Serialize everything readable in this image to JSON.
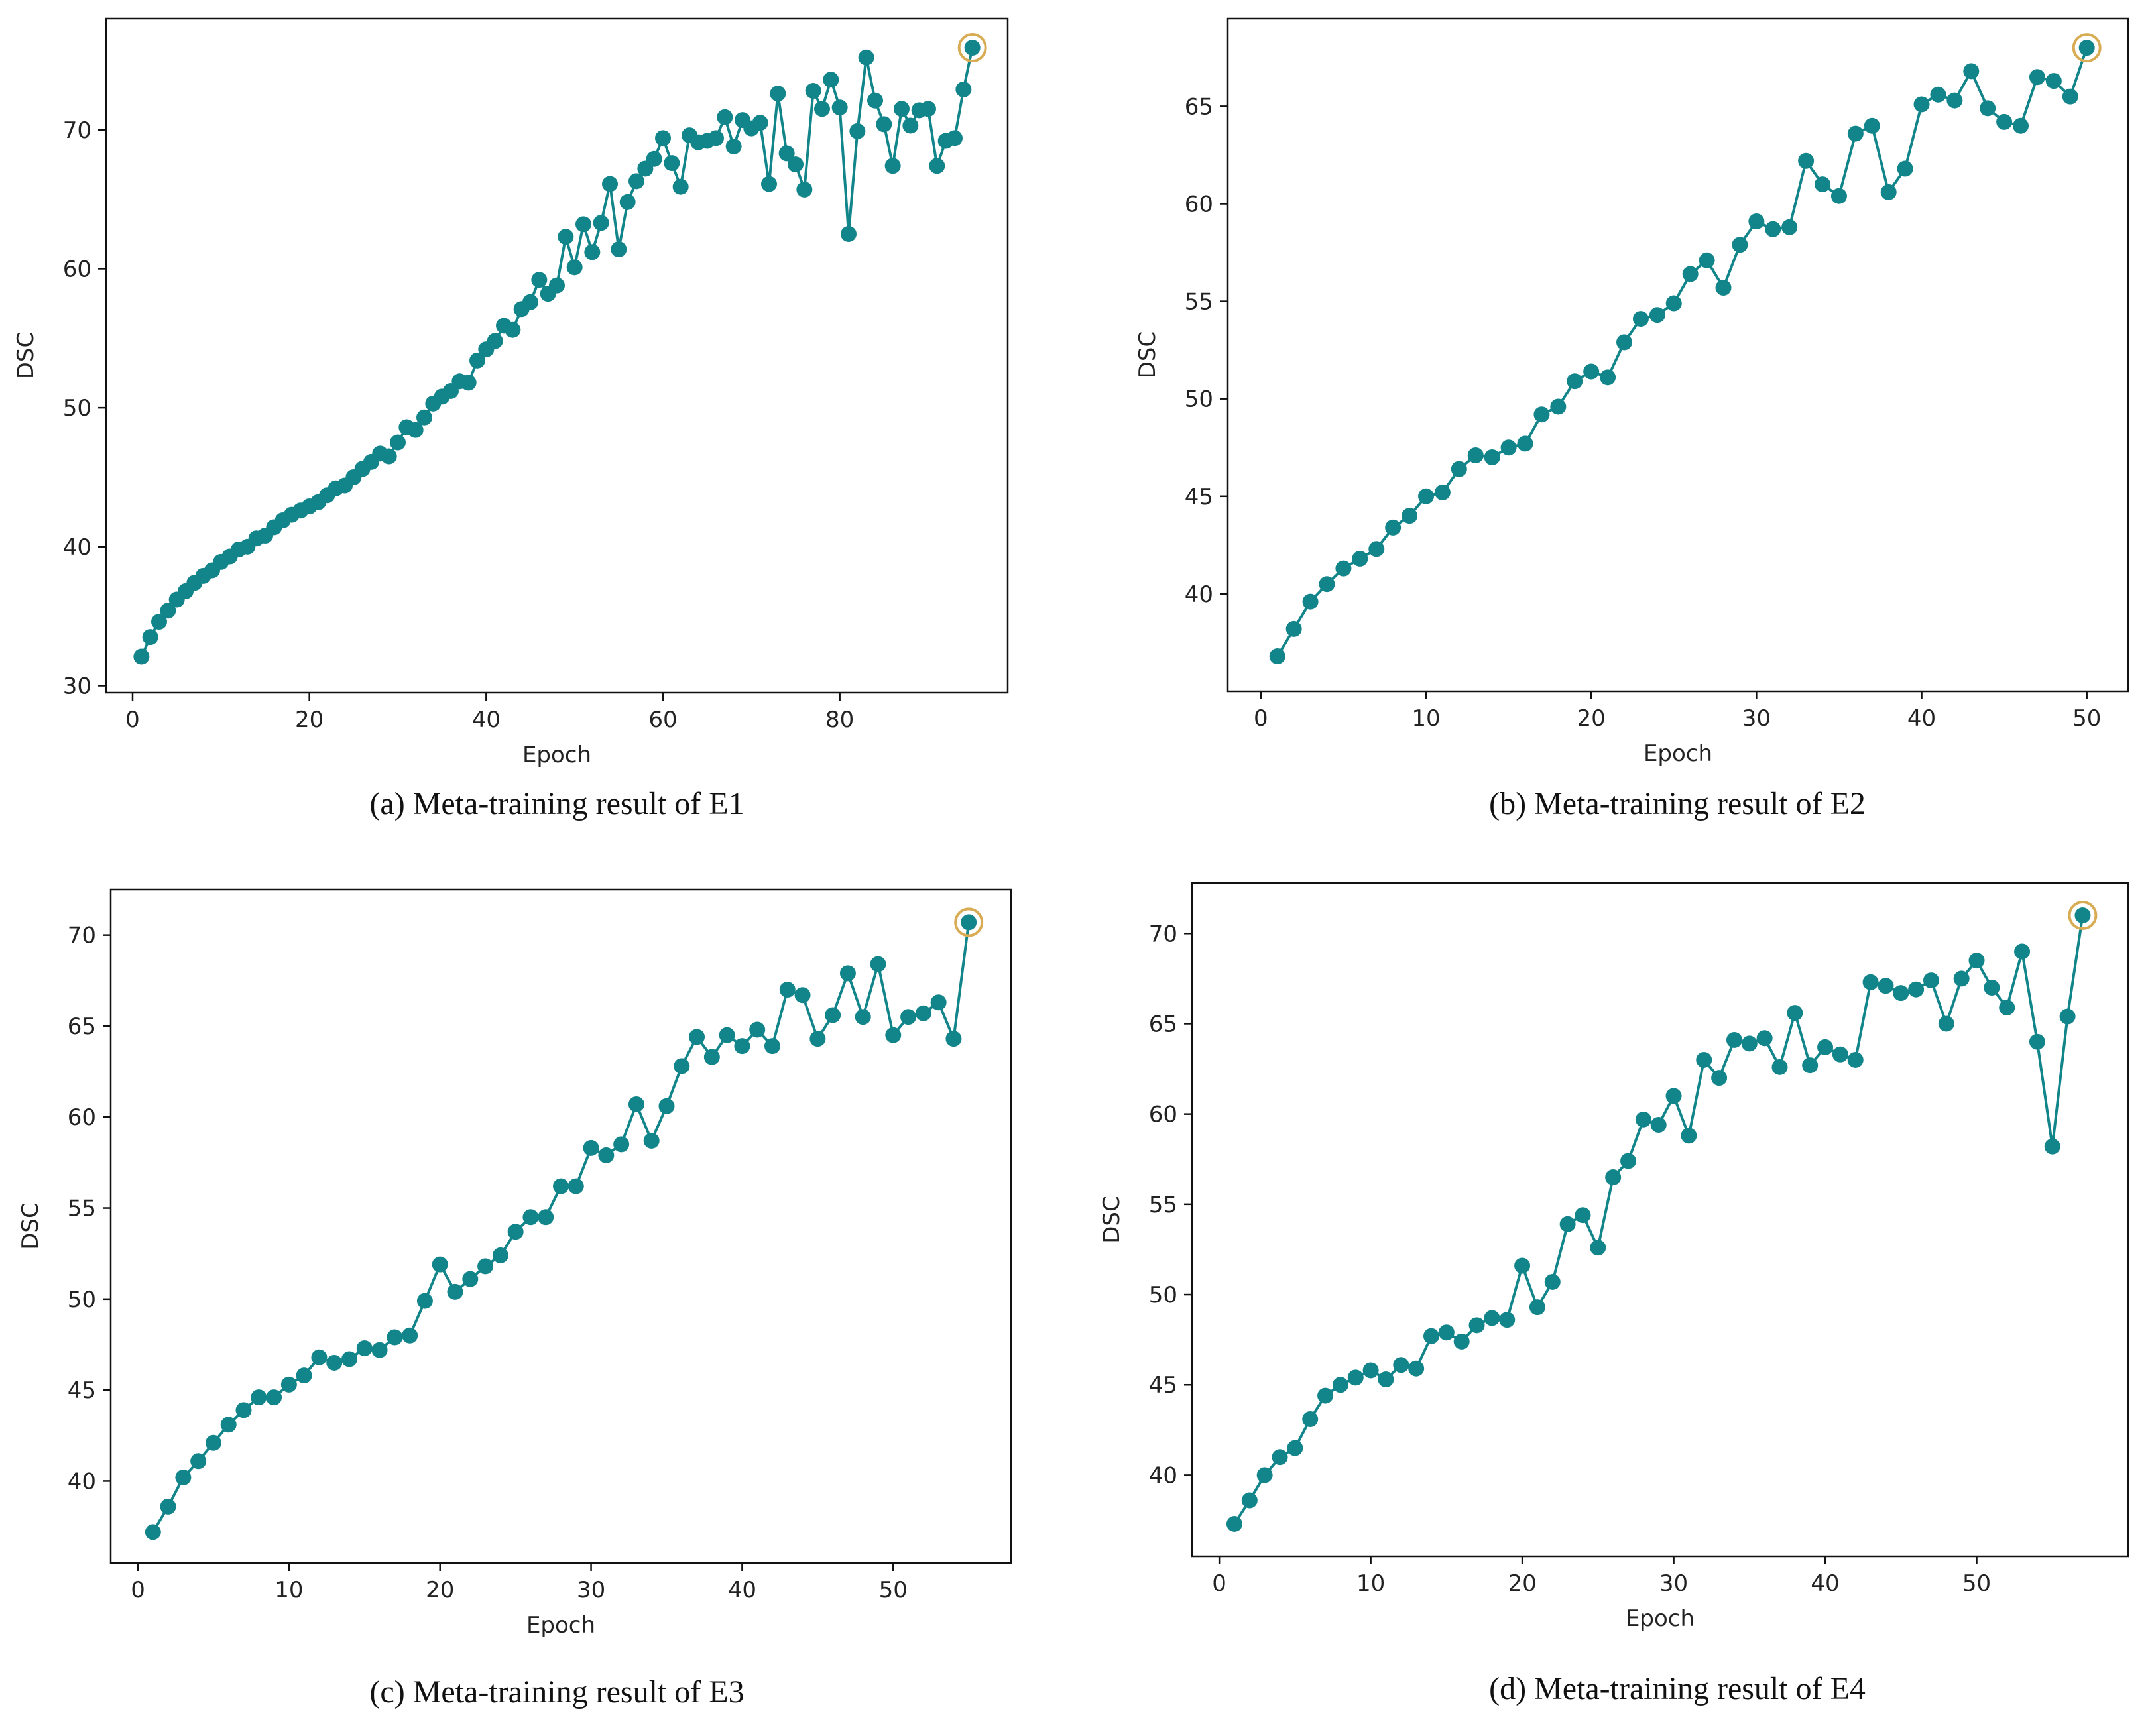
{
  "chart_data": [
    {
      "type": "line",
      "panel": "a",
      "caption": "(a) Meta-training result of E1",
      "xlabel": "Epoch",
      "ylabel": "DSC",
      "xlim": [
        -3,
        99
      ],
      "ylim": [
        29.5,
        78
      ],
      "xticks": [
        0,
        20,
        40,
        60,
        80
      ],
      "yticks": [
        30,
        40,
        50,
        60,
        70
      ],
      "line_color": "#12858A",
      "highlight_color": "#D8AC55",
      "highlight_last": true,
      "series": [
        {
          "name": "DSC",
          "x_start": 1,
          "values": [
            32.1,
            33.5,
            34.6,
            35.4,
            36.2,
            36.8,
            37.4,
            37.9,
            38.3,
            38.9,
            39.3,
            39.8,
            40.0,
            40.6,
            40.8,
            41.4,
            41.9,
            42.3,
            42.6,
            42.9,
            43.2,
            43.7,
            44.2,
            44.4,
            45.0,
            45.6,
            46.1,
            46.7,
            46.5,
            47.5,
            48.6,
            48.4,
            49.3,
            50.3,
            50.8,
            51.2,
            51.9,
            51.8,
            53.4,
            54.2,
            54.8,
            55.9,
            55.6,
            57.1,
            57.6,
            59.2,
            58.2,
            58.8,
            62.3,
            60.1,
            63.2,
            61.2,
            63.3,
            66.1,
            61.4,
            64.8,
            66.3,
            67.2,
            67.9,
            69.4,
            67.6,
            65.9,
            69.6,
            69.1,
            69.2,
            69.4,
            70.9,
            68.8,
            70.7,
            70.1,
            70.5,
            66.1,
            72.6,
            68.3,
            67.5,
            65.7,
            72.8,
            71.5,
            73.6,
            71.6,
            62.5,
            69.9,
            75.2,
            72.1,
            70.4,
            67.4,
            71.5,
            70.3,
            71.4,
            71.5,
            67.4,
            69.2,
            69.4,
            72.9,
            75.9
          ]
        }
      ]
    },
    {
      "type": "line",
      "panel": "b",
      "caption": "(b) Meta-training result of E2",
      "xlabel": "Epoch",
      "ylabel": "DSC",
      "xlim": [
        -2,
        52.5
      ],
      "ylim": [
        35,
        69.5
      ],
      "xticks": [
        0,
        10,
        20,
        30,
        40,
        50
      ],
      "yticks": [
        40,
        45,
        50,
        55,
        60,
        65
      ],
      "line_color": "#12858A",
      "highlight_color": "#D8AC55",
      "highlight_last": true,
      "series": [
        {
          "name": "DSC",
          "x_start": 1,
          "values": [
            36.8,
            38.2,
            39.6,
            40.5,
            41.3,
            41.8,
            42.3,
            43.4,
            44.0,
            45.0,
            45.2,
            46.4,
            47.1,
            47.0,
            47.5,
            47.7,
            49.2,
            49.6,
            50.9,
            51.4,
            51.1,
            52.9,
            54.1,
            54.3,
            54.9,
            56.4,
            57.1,
            55.7,
            57.9,
            59.1,
            58.7,
            58.8,
            62.2,
            61.0,
            60.4,
            63.6,
            64.0,
            60.6,
            61.8,
            65.1,
            65.6,
            65.3,
            66.8,
            64.9,
            64.2,
            64.0,
            66.5,
            66.3,
            65.5,
            68.0
          ]
        }
      ]
    },
    {
      "type": "line",
      "panel": "c",
      "caption": "(c) Meta-training result of E3",
      "xlabel": "Epoch",
      "ylabel": "DSC",
      "xlim": [
        -1.8,
        57.8
      ],
      "ylim": [
        35.5,
        72.5
      ],
      "xticks": [
        0,
        10,
        20,
        30,
        40,
        50
      ],
      "yticks": [
        40,
        45,
        50,
        55,
        60,
        65,
        70
      ],
      "line_color": "#12858A",
      "highlight_color": "#D8AC55",
      "highlight_last": true,
      "series": [
        {
          "name": "DSC",
          "x_start": 1,
          "values": [
            37.2,
            38.6,
            40.2,
            41.1,
            42.1,
            43.1,
            43.9,
            44.6,
            44.6,
            45.3,
            45.8,
            46.8,
            46.5,
            46.7,
            47.3,
            47.2,
            47.9,
            48.0,
            49.9,
            51.9,
            50.4,
            51.1,
            51.8,
            52.4,
            53.7,
            54.5,
            54.5,
            56.2,
            56.2,
            58.3,
            57.9,
            58.5,
            60.7,
            58.7,
            60.6,
            62.8,
            64.4,
            63.3,
            64.5,
            63.9,
            64.8,
            63.9,
            67.0,
            66.7,
            64.3,
            65.6,
            67.9,
            65.5,
            68.4,
            64.5,
            65.5,
            65.7,
            66.3,
            64.3,
            70.7
          ]
        }
      ]
    },
    {
      "type": "line",
      "panel": "d",
      "caption": "(d) Meta-training result of E4",
      "xlabel": "Epoch",
      "ylabel": "DSC",
      "xlim": [
        -1.8,
        60
      ],
      "ylim": [
        35.5,
        72.8
      ],
      "xticks": [
        0,
        10,
        20,
        30,
        40,
        50
      ],
      "yticks": [
        40,
        45,
        50,
        55,
        60,
        65,
        70
      ],
      "line_color": "#12858A",
      "highlight_color": "#D8AC55",
      "highlight_last": true,
      "series": [
        {
          "name": "DSC",
          "x_start": 1,
          "values": [
            37.3,
            38.6,
            40.0,
            41.0,
            41.5,
            43.1,
            44.4,
            45.0,
            45.4,
            45.8,
            45.3,
            46.1,
            45.9,
            47.7,
            47.9,
            47.4,
            48.3,
            48.7,
            48.6,
            51.6,
            49.3,
            50.7,
            53.9,
            54.4,
            52.6,
            56.5,
            57.4,
            59.7,
            59.4,
            61.0,
            58.8,
            63.0,
            62.0,
            64.1,
            63.9,
            64.2,
            62.6,
            65.6,
            62.7,
            63.7,
            63.3,
            63.0,
            67.3,
            67.1,
            66.7,
            66.9,
            67.4,
            65.0,
            67.5,
            68.5,
            67.0,
            65.9,
            69.0,
            64.0,
            58.2,
            65.4,
            71.0
          ]
        }
      ]
    }
  ]
}
